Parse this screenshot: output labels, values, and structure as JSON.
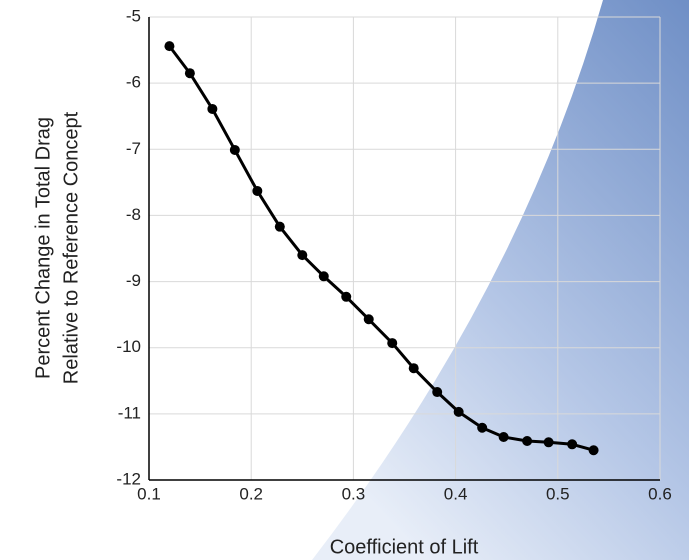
{
  "chart_data": {
    "type": "line",
    "xlabel": "Coefficient of Lift",
    "ylabel": [
      "Percent Change in Total Drag",
      "Relative to Reference Concept"
    ],
    "x": [
      0.12,
      0.14,
      0.162,
      0.184,
      0.206,
      0.228,
      0.25,
      0.271,
      0.293,
      0.315,
      0.338,
      0.359,
      0.382,
      0.403,
      0.426,
      0.447,
      0.47,
      0.491,
      0.514,
      0.535
    ],
    "series": [
      {
        "color": "#000000",
        "values": [
          -5.44,
          -5.85,
          -6.39,
          -7.01,
          -7.63,
          -8.17,
          -8.6,
          -8.92,
          -9.23,
          -9.57,
          -9.93,
          -10.31,
          -10.67,
          -10.97,
          -11.21,
          -11.35,
          -11.41,
          -11.43,
          -11.46,
          -11.55
        ]
      }
    ],
    "xlim": [
      0.1,
      0.6
    ],
    "xticks": [
      0.1,
      0.2,
      0.3,
      0.4,
      0.5,
      0.6
    ],
    "ylim": [
      -12,
      -5
    ],
    "yticks": [
      -12,
      -11,
      -10,
      -9,
      -8,
      -7,
      -6,
      -5
    ],
    "grid": true
  }
}
